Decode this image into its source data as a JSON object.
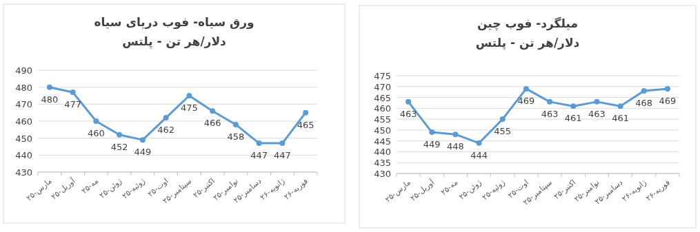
{
  "chart_data": [
    {
      "type": "line",
      "title": "ورق سیاه- فوب دریای سیاه\nدلار/هر تن - پلتس",
      "categories": [
        "مارس-۲۵",
        "آوریل-۲۵",
        "مه-۲۵",
        "ژوئن-۲۵",
        "ژوئیه-۲۵",
        "اوت-۲۵",
        "سپتامبر-۲۵",
        "اکتبر-۲۵",
        "نوامبر-۲۵",
        "دسامبر-۲۵",
        "ژانویه-۲۶",
        "فوریه-۲۶"
      ],
      "series": [
        {
          "color": "#5b9bd5",
          "values": [
            480,
            477,
            460,
            452,
            449,
            462,
            475,
            466,
            458,
            447,
            447,
            465
          ]
        }
      ],
      "ylim": [
        430,
        490
      ],
      "yticks": [
        430,
        440,
        450,
        460,
        470,
        480,
        490
      ],
      "grid": "y",
      "marker": "circle",
      "data_labels": true
    },
    {
      "type": "line",
      "title": "میلگرد- فوب چین\nدلار/هر تن - پلتس",
      "categories": [
        "مارس-۲۵",
        "آوریل-۲۵",
        "مه-۲۵",
        "ژوئن-۲۵",
        "ژوئیه-۲۵",
        "اوت-۲۵",
        "سپتامبر-۲۵",
        "اکتبر-۲۵",
        "نوامبر-۲۵",
        "دسامبر-۲۵",
        "ژانویه-۲۶",
        "فوریه-۲۶"
      ],
      "series": [
        {
          "color": "#5b9bd5",
          "values": [
            463,
            449,
            448,
            444,
            455,
            469,
            463,
            461,
            463,
            461,
            468,
            469
          ]
        }
      ],
      "ylim": [
        430,
        475
      ],
      "yticks": [
        430,
        435,
        440,
        445,
        450,
        455,
        460,
        465,
        470,
        475
      ],
      "grid": "y",
      "marker": "circle",
      "data_labels": true
    }
  ]
}
